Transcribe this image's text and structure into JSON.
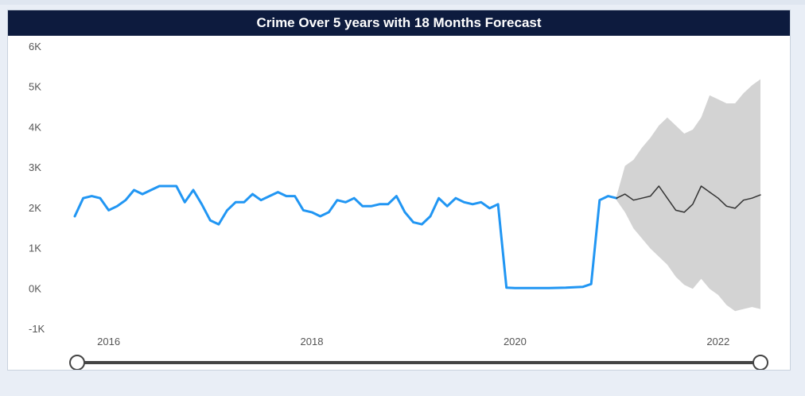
{
  "page": {
    "background": "#e9eef6",
    "panel_background": "#ffffff",
    "title_bar_color": "#0d1b3e"
  },
  "chart_data": {
    "type": "line",
    "title": "Crime Over 5 years with 18 Months Forecast",
    "xlabel": "",
    "ylabel": "",
    "ylim": [
      -1000,
      6000
    ],
    "xlim": [
      "2015-09",
      "2022-06"
    ],
    "y_ticks": [
      {
        "value": -1000,
        "label": "-1K"
      },
      {
        "value": 0,
        "label": "0K"
      },
      {
        "value": 1000,
        "label": "1K"
      },
      {
        "value": 2000,
        "label": "2K"
      },
      {
        "value": 3000,
        "label": "3K"
      },
      {
        "value": 4000,
        "label": "4K"
      },
      {
        "value": 5000,
        "label": "5K"
      },
      {
        "value": 6000,
        "label": "6K"
      }
    ],
    "x_ticks": [
      {
        "value": "2016-01",
        "label": "2016"
      },
      {
        "value": "2018-01",
        "label": "2018"
      },
      {
        "value": "2020-01",
        "label": "2020"
      },
      {
        "value": "2022-01",
        "label": "2022"
      }
    ],
    "grid": false,
    "series": [
      {
        "role": "actual",
        "color": "#2196f3",
        "x": [
          "2015-09",
          "2015-10",
          "2015-11",
          "2015-12",
          "2016-01",
          "2016-02",
          "2016-03",
          "2016-04",
          "2016-05",
          "2016-06",
          "2016-07",
          "2016-08",
          "2016-09",
          "2016-10",
          "2016-11",
          "2016-12",
          "2017-01",
          "2017-02",
          "2017-03",
          "2017-04",
          "2017-05",
          "2017-06",
          "2017-07",
          "2017-08",
          "2017-09",
          "2017-10",
          "2017-11",
          "2017-12",
          "2018-01",
          "2018-02",
          "2018-03",
          "2018-04",
          "2018-05",
          "2018-06",
          "2018-07",
          "2018-08",
          "2018-09",
          "2018-10",
          "2018-11",
          "2018-12",
          "2019-01",
          "2019-02",
          "2019-03",
          "2019-04",
          "2019-05",
          "2019-06",
          "2019-07",
          "2019-08",
          "2019-09",
          "2019-10",
          "2019-11",
          "2019-12",
          "2020-01",
          "2020-02",
          "2020-03",
          "2020-04",
          "2020-05",
          "2020-06",
          "2020-07",
          "2020-08",
          "2020-09",
          "2020-10",
          "2020-11",
          "2020-12",
          "2021-01"
        ],
        "y": [
          1800,
          2250,
          2300,
          2250,
          1950,
          2050,
          2200,
          2450,
          2350,
          2450,
          2550,
          2550,
          2550,
          2150,
          2450,
          2100,
          1700,
          1600,
          1950,
          2150,
          2150,
          2350,
          2200,
          2300,
          2400,
          2300,
          2300,
          1950,
          1900,
          1800,
          1900,
          2200,
          2150,
          2250,
          2050,
          2050,
          2100,
          2100,
          2300,
          1900,
          1650,
          1600,
          1800,
          2250,
          2050,
          2250,
          2150,
          2100,
          2150,
          2000,
          2100,
          30,
          20,
          20,
          20,
          20,
          20,
          25,
          30,
          40,
          50,
          120,
          2200,
          2300,
          2250
        ]
      },
      {
        "role": "forecast",
        "color": "#333333",
        "x": [
          "2021-01",
          "2021-02",
          "2021-03",
          "2021-04",
          "2021-05",
          "2021-06",
          "2021-07",
          "2021-08",
          "2021-09",
          "2021-10",
          "2021-11",
          "2021-12",
          "2022-01",
          "2022-02",
          "2022-03",
          "2022-04",
          "2022-05",
          "2022-06"
        ],
        "y": [
          2250,
          2350,
          2200,
          2250,
          2300,
          2550,
          2250,
          1950,
          1900,
          2100,
          2550,
          2400,
          2250,
          2050,
          2000,
          2200,
          2250,
          2330
        ],
        "lower": [
          2200,
          1900,
          1500,
          1250,
          1000,
          800,
          600,
          300,
          100,
          0,
          250,
          0,
          -150,
          -400,
          -550,
          -500,
          -450,
          -500
        ],
        "upper": [
          2300,
          3050,
          3200,
          3500,
          3750,
          4050,
          4250,
          4050,
          3850,
          3950,
          4250,
          4800,
          4700,
          4600,
          4600,
          4850,
          5050,
          5200
        ]
      }
    ],
    "forecast_band_color": "#d3d3d3"
  },
  "slider": {
    "start_fraction": 0.0,
    "end_fraction": 1.0,
    "track_color": "#444444"
  }
}
